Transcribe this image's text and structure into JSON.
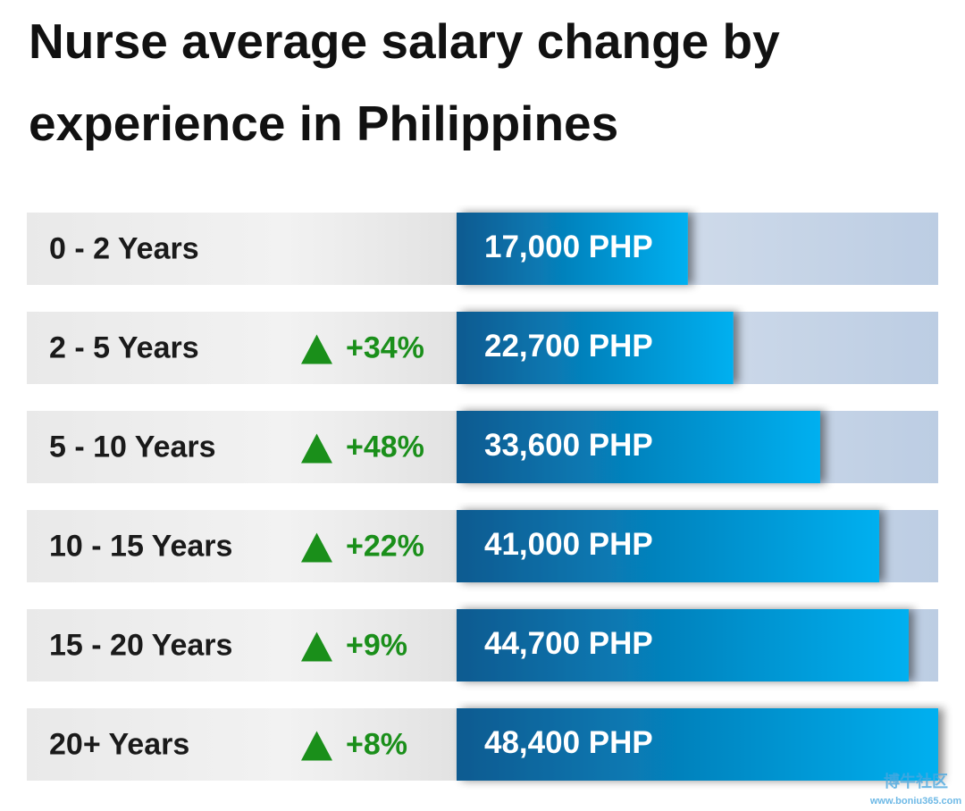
{
  "chart_data": {
    "type": "bar",
    "orientation": "horizontal",
    "title": "Nurse average salary change by experience in Philippines",
    "categories": [
      "0 - 2 Years",
      "2 - 5 Years",
      "5 - 10 Years",
      "10 - 15 Years",
      "15 - 20 Years",
      "20+ Years"
    ],
    "values": [
      17000,
      22700,
      33600,
      41000,
      44700,
      48400
    ],
    "value_labels": [
      "17,000 PHP",
      "22,700 PHP",
      "33,600 PHP",
      "41,000 PHP",
      "44,700 PHP",
      "48,400 PHP"
    ],
    "changes": [
      null,
      "+34%",
      "+48%",
      "+22%",
      "+9%",
      "+8%"
    ],
    "xlim": [
      -12000,
      48400
    ],
    "color": "#0aa0e0",
    "change_color": "#1a8f1a",
    "watermark": {
      "name": "博牛社区",
      "url": "www.boniu365.com"
    }
  }
}
